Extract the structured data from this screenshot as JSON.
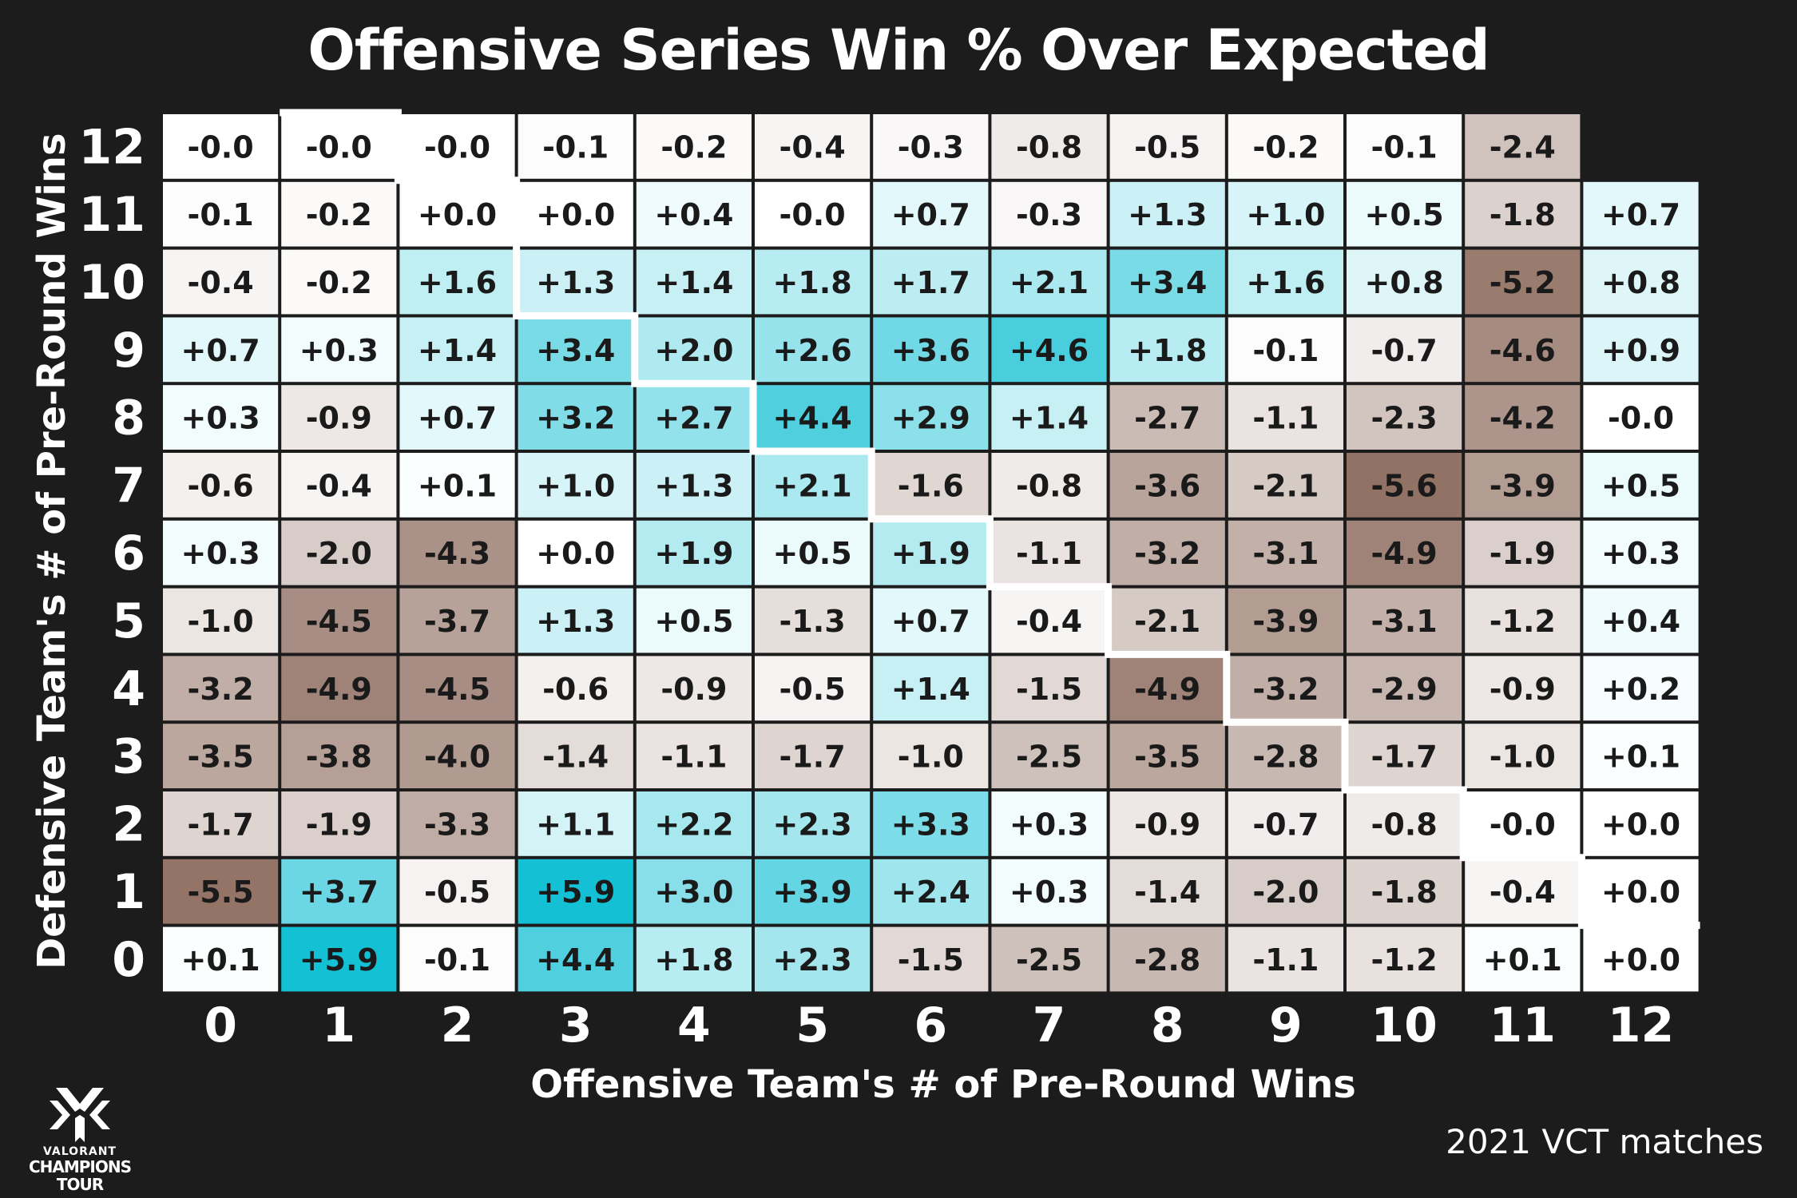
{
  "chart_data": {
    "type": "heatmap",
    "title": "Offensive Series Win % Over Expected",
    "xlabel": "Offensive Team's # of Pre-Round Wins",
    "ylabel": "Defensive Team's # of Pre-Round Wins",
    "x_categories": [
      "0",
      "1",
      "2",
      "3",
      "4",
      "5",
      "6",
      "7",
      "8",
      "9",
      "10",
      "11",
      "12"
    ],
    "y_categories": [
      "12",
      "11",
      "10",
      "9",
      "8",
      "7",
      "6",
      "5",
      "4",
      "3",
      "2",
      "1",
      "0"
    ],
    "values": [
      [
        "-0.0",
        "-0.0",
        "-0.0",
        "-0.1",
        "-0.2",
        "-0.4",
        "-0.3",
        "-0.8",
        "-0.5",
        "-0.2",
        "-0.1",
        "-2.4",
        null
      ],
      [
        "-0.1",
        "-0.2",
        "+0.0",
        "+0.0",
        "+0.4",
        "-0.0",
        "+0.7",
        "-0.3",
        "+1.3",
        "+1.0",
        "+0.5",
        "-1.8",
        "+0.7"
      ],
      [
        "-0.4",
        "-0.2",
        "+1.6",
        "+1.3",
        "+1.4",
        "+1.8",
        "+1.7",
        "+2.1",
        "+3.4",
        "+1.6",
        "+0.8",
        "-5.2",
        "+0.8"
      ],
      [
        "+0.7",
        "+0.3",
        "+1.4",
        "+3.4",
        "+2.0",
        "+2.6",
        "+3.6",
        "+4.6",
        "+1.8",
        "-0.1",
        "-0.7",
        "-4.6",
        "+0.9"
      ],
      [
        "+0.3",
        "-0.9",
        "+0.7",
        "+3.2",
        "+2.7",
        "+4.4",
        "+2.9",
        "+1.4",
        "-2.7",
        "-1.1",
        "-2.3",
        "-4.2",
        "-0.0"
      ],
      [
        "-0.6",
        "-0.4",
        "+0.1",
        "+1.0",
        "+1.3",
        "+2.1",
        "-1.6",
        "-0.8",
        "-3.6",
        "-2.1",
        "-5.6",
        "-3.9",
        "+0.5"
      ],
      [
        "+0.3",
        "-2.0",
        "-4.3",
        "+0.0",
        "+1.9",
        "+0.5",
        "+1.9",
        "-1.1",
        "-3.2",
        "-3.1",
        "-4.9",
        "-1.9",
        "+0.3"
      ],
      [
        "-1.0",
        "-4.5",
        "-3.7",
        "+1.3",
        "+0.5",
        "-1.3",
        "+0.7",
        "-0.4",
        "-2.1",
        "-3.9",
        "-3.1",
        "-1.2",
        "+0.4"
      ],
      [
        "-3.2",
        "-4.9",
        "-4.5",
        "-0.6",
        "-0.9",
        "-0.5",
        "+1.4",
        "-1.5",
        "-4.9",
        "-3.2",
        "-2.9",
        "-0.9",
        "+0.2"
      ],
      [
        "-3.5",
        "-3.8",
        "-4.0",
        "-1.4",
        "-1.1",
        "-1.7",
        "-1.0",
        "-2.5",
        "-3.5",
        "-2.8",
        "-1.7",
        "-1.0",
        "+0.1"
      ],
      [
        "-1.7",
        "-1.9",
        "-3.3",
        "+1.1",
        "+2.2",
        "+2.3",
        "+3.3",
        "+0.3",
        "-0.9",
        "-0.7",
        "-0.8",
        "-0.0",
        "+0.0"
      ],
      [
        "-5.5",
        "+3.7",
        "-0.5",
        "+5.9",
        "+3.0",
        "+3.9",
        "+2.4",
        "+0.3",
        "-1.4",
        "-2.0",
        "-1.8",
        "-0.4",
        "+0.0"
      ],
      [
        "+0.1",
        "+5.9",
        "-0.1",
        "+4.4",
        "+1.8",
        "+2.3",
        "-1.5",
        "-2.5",
        "-2.8",
        "-1.1",
        "-1.2",
        "+0.1",
        "+0.0"
      ]
    ],
    "value_range": [
      -5.9,
      5.9
    ],
    "colors": {
      "positive_max": "#14c0d4",
      "negative_max": "#8c6a5c",
      "neutral": "#ffffff",
      "background": "#1c1c1c",
      "text": "#1a1a1a"
    }
  },
  "footnote": "2021 VCT matches",
  "logo": {
    "line1": "VALORANT",
    "line2": "CHAMPIONS TOUR",
    "icon": "vct-logo-icon"
  }
}
